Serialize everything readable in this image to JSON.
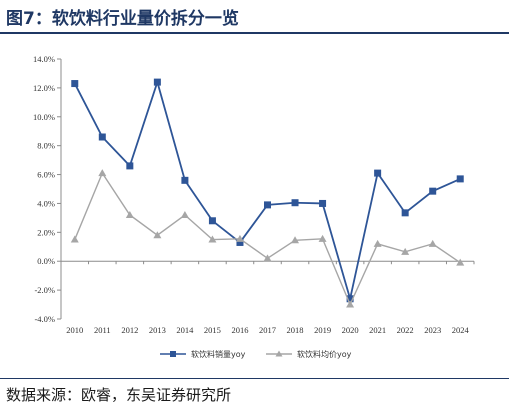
{
  "header": {
    "title": "图7：软饮料行业量价拆分一览"
  },
  "footer": {
    "source": "数据来源：欧睿，东吴证券研究所"
  },
  "chart_data": {
    "type": "line",
    "title": "",
    "xlabel": "",
    "ylabel": "",
    "x": [
      "2010",
      "2011",
      "2012",
      "2013",
      "2014",
      "2015",
      "2016",
      "2017",
      "2018",
      "2019",
      "2020",
      "2021",
      "2022",
      "2023",
      "2024"
    ],
    "ylim": [
      -4.0,
      14.0
    ],
    "yticks": [
      "14.0%",
      "12.0%",
      "10.0%",
      "8.0%",
      "6.0%",
      "4.0%",
      "2.0%",
      "0.0%",
      "-2.0%",
      "-4.0%"
    ],
    "grid": false,
    "legend_position": "bottom",
    "series": [
      {
        "name": "软饮料销量yoy",
        "color": "#2e5597",
        "marker": "square",
        "values": [
          12.3,
          8.6,
          6.6,
          12.4,
          5.6,
          2.8,
          1.3,
          3.9,
          4.05,
          4.0,
          -2.6,
          6.1,
          3.35,
          4.85,
          5.7
        ]
      },
      {
        "name": "软饮料均价yoy",
        "color": "#a6a6a6",
        "marker": "triangle",
        "values": [
          1.5,
          6.1,
          3.2,
          1.8,
          3.2,
          1.5,
          1.55,
          0.2,
          1.45,
          1.55,
          -3.0,
          1.2,
          0.65,
          1.2,
          -0.1
        ]
      }
    ]
  }
}
